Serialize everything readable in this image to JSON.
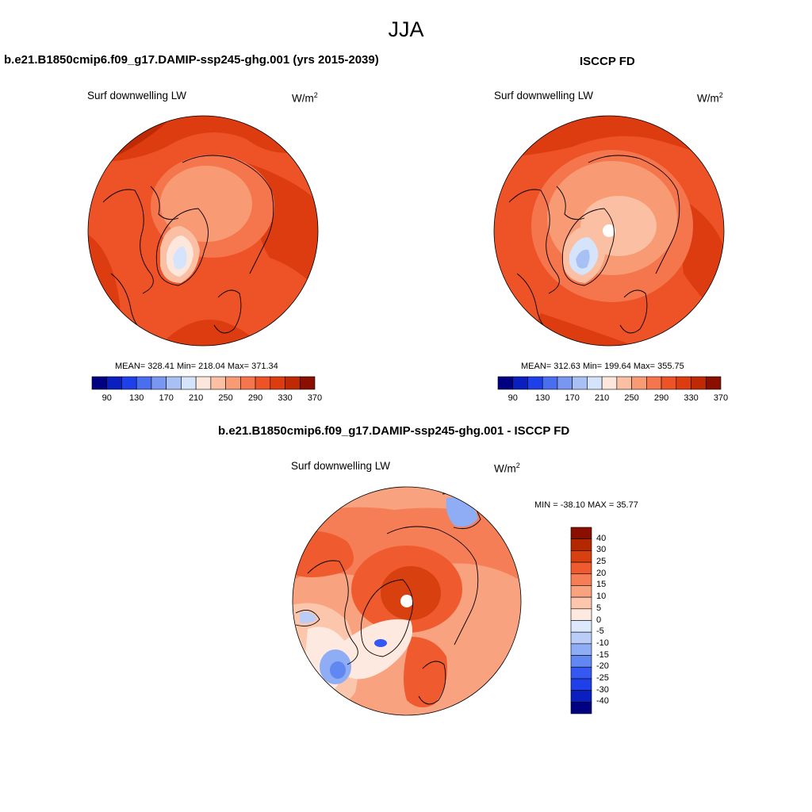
{
  "season": "JJA",
  "colors": {
    "sequential": [
      "#000080",
      "#0a1fbf",
      "#1f3fe8",
      "#4a6ef0",
      "#7996f2",
      "#a9c0f5",
      "#d6e4fb",
      "#fde7dc",
      "#fbc0a3",
      "#f89a73",
      "#f5754d",
      "#ee5227",
      "#dd3b10",
      "#bf2a05",
      "#8b0f00"
    ],
    "difference": [
      "#000080",
      "#0a1fbf",
      "#1f3fe8",
      "#3558f2",
      "#6087f2",
      "#8fadf5",
      "#b9cdf8",
      "#dce8fb",
      "#fde9df",
      "#fbc6ab",
      "#f8a27f",
      "#f57e57",
      "#ef5a2f",
      "#d9400f",
      "#b32800",
      "#8b0f00"
    ]
  },
  "panels": {
    "model": {
      "title": "b.e21.B1850cmip6.f09_g17.DAMIP-ssp245-ghg.001 (yrs 2015-2039)",
      "variable": "Surf downwelling LW",
      "units_base": "W/m",
      "units_exp": "2",
      "stats": "MEAN= 328.41  Min= 218.04  Max= 371.34"
    },
    "obs": {
      "title": "ISCCP FD",
      "variable": "Surf downwelling LW",
      "units_base": "W/m",
      "units_exp": "2",
      "stats": "MEAN= 312.63  Min= 199.64  Max= 355.75"
    },
    "diff": {
      "title": "b.e21.B1850cmip6.f09_g17.DAMIP-ssp245-ghg.001 - ISCCP FD",
      "variable": "Surf downwelling LW",
      "units_base": "W/m",
      "units_exp": "2",
      "stats": "MIN = -38.10 MAX =  35.77"
    }
  },
  "chart_data": [
    {
      "type": "heatmap",
      "projection": "north polar stereographic",
      "title": "b.e21.B1850cmip6.f09_g17.DAMIP-ssp245-ghg.001 (yrs 2015-2039)",
      "variable": "Surf downwelling LW",
      "units": "W/m2",
      "mean": 328.41,
      "min": 218.04,
      "max": 371.34,
      "colorbar_levels": [
        90,
        110,
        130,
        150,
        170,
        190,
        210,
        230,
        250,
        270,
        290,
        310,
        330,
        350,
        370
      ],
      "colorbar_tick_labels": [
        "90",
        "130",
        "170",
        "210",
        "250",
        "290",
        "330",
        "370"
      ]
    },
    {
      "type": "heatmap",
      "projection": "north polar stereographic",
      "title": "ISCCP FD",
      "variable": "Surf downwelling LW",
      "units": "W/m2",
      "mean": 312.63,
      "min": 199.64,
      "max": 355.75,
      "colorbar_levels": [
        90,
        110,
        130,
        150,
        170,
        190,
        210,
        230,
        250,
        270,
        290,
        310,
        330,
        350,
        370
      ],
      "colorbar_tick_labels": [
        "90",
        "130",
        "170",
        "210",
        "250",
        "290",
        "330",
        "370"
      ]
    },
    {
      "type": "heatmap",
      "projection": "north polar stereographic",
      "title": "b.e21.B1850cmip6.f09_g17.DAMIP-ssp245-ghg.001 - ISCCP FD",
      "variable": "Surf downwelling LW",
      "units": "W/m2",
      "min": -38.1,
      "max": 35.77,
      "colorbar_levels": [
        -40,
        -30,
        -25,
        -20,
        -15,
        -10,
        -5,
        0,
        5,
        10,
        15,
        20,
        25,
        30,
        40
      ],
      "colorbar_tick_labels": [
        "40",
        "30",
        "25",
        "20",
        "15",
        "10",
        "5",
        "0",
        "-5",
        "-10",
        "-15",
        "-20",
        "-25",
        "-30",
        "-40"
      ]
    }
  ]
}
